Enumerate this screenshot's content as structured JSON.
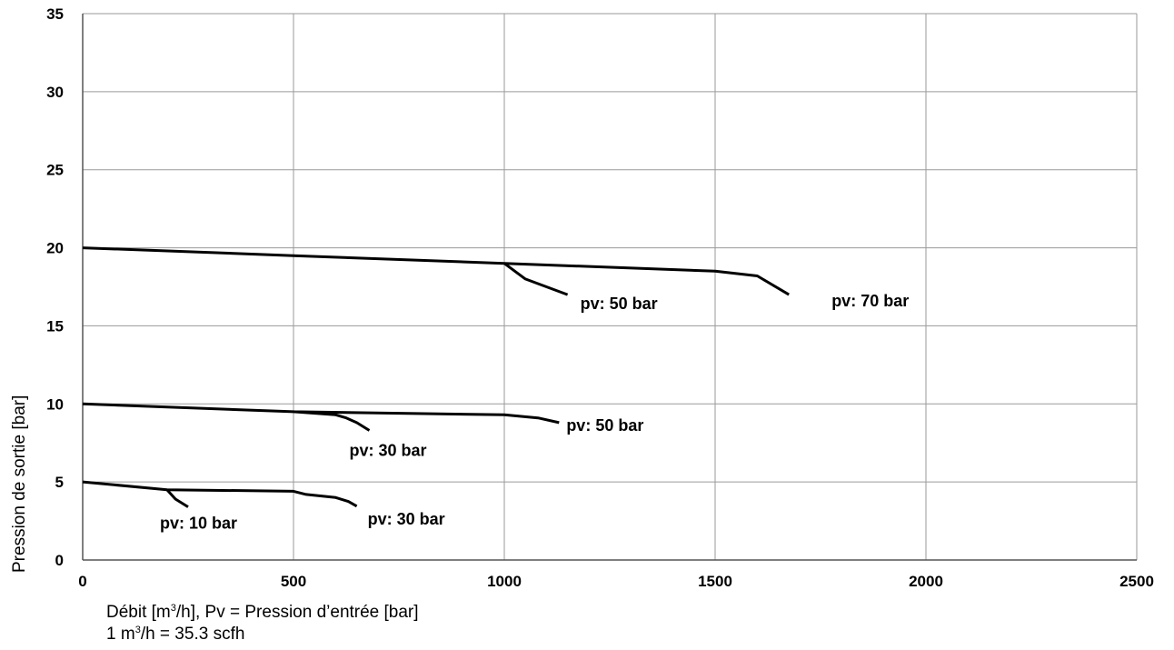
{
  "chart_data": {
    "type": "line",
    "ylabel": "Pression de sortie [bar]",
    "xlabel_lines": [
      {
        "pre": "Débit [m",
        "sup": "3",
        "post": "/h], Pv = Pression d’entrée [bar]"
      },
      {
        "pre": "1 m",
        "sup": "3",
        "post": "/h = 35.3 scfh"
      }
    ],
    "xlim": [
      0,
      2500
    ],
    "ylim": [
      0,
      35
    ],
    "xticks": [
      0,
      500,
      1000,
      1500,
      2000,
      2500
    ],
    "yticks": [
      0,
      5,
      10,
      15,
      20,
      25,
      30,
      35
    ],
    "grid": true,
    "series": [
      {
        "label": "pv: 70 bar",
        "x": [
          0,
          500,
          1000,
          1500,
          1600,
          1675
        ],
        "y": [
          20,
          19.5,
          19,
          18.5,
          18.2,
          17
        ]
      },
      {
        "label": "pv: 50 bar",
        "x": [
          1000,
          1050,
          1150
        ],
        "y": [
          19,
          18,
          17
        ]
      },
      {
        "label": "pv: 50 bar",
        "x": [
          0,
          500,
          1000,
          1080,
          1130
        ],
        "y": [
          10,
          9.5,
          9.3,
          9.1,
          8.8
        ]
      },
      {
        "label": "pv: 30 bar",
        "x": [
          500,
          600,
          625,
          650,
          680
        ],
        "y": [
          9.5,
          9.3,
          9.1,
          8.8,
          8.3
        ]
      },
      {
        "label": "pv: 30 bar",
        "x": [
          0,
          200,
          500,
          530,
          600,
          630,
          650
        ],
        "y": [
          5,
          4.5,
          4.4,
          4.2,
          4.0,
          3.75,
          3.45
        ]
      },
      {
        "label": "pv: 10 bar",
        "x": [
          200,
          220,
          250
        ],
        "y": [
          4.5,
          3.9,
          3.4
        ]
      }
    ]
  }
}
